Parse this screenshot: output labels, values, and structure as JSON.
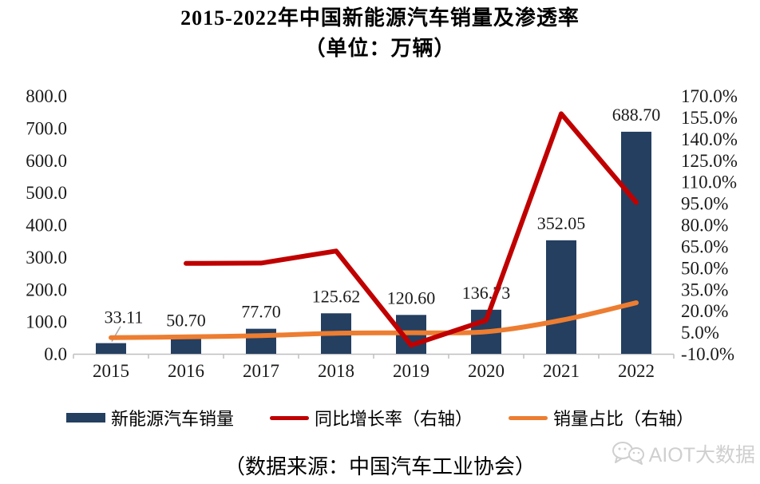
{
  "title": {
    "line1": "2015-2022年中国新能源汽车销量及渗透率",
    "line2": "（单位：万辆）"
  },
  "source": "（数据来源：中国汽车工业协会）",
  "watermark": {
    "icon": "wechat-chat-bubbles-icon",
    "text": "AIOT大数据"
  },
  "legend": [
    {
      "label": "新能源汽车销量",
      "type": "bar",
      "color": "#243F60"
    },
    {
      "label": "同比增长率（右轴）",
      "type": "line",
      "color": "#C00000"
    },
    {
      "label": "销量占比（右轴）",
      "type": "line",
      "color": "#ED7D31"
    }
  ],
  "chart_data": {
    "type": "bar+line",
    "categories": [
      "2015",
      "2016",
      "2017",
      "2018",
      "2019",
      "2020",
      "2021",
      "2022"
    ],
    "series": [
      {
        "name": "新能源汽车销量",
        "type": "bar",
        "axis": "left",
        "color": "#243F60",
        "values": [
          33.11,
          50.7,
          77.7,
          125.62,
          120.6,
          136.73,
          352.05,
          688.7
        ],
        "labels": [
          "33.11",
          "50.70",
          "77.70",
          "125.62",
          "120.60",
          "136.73",
          "352.05",
          "688.70"
        ]
      },
      {
        "name": "同比增长率（右轴）",
        "type": "line",
        "axis": "right",
        "color": "#C00000",
        "smooth": false,
        "values": [
          null,
          53.1,
          53.3,
          61.7,
          -4.0,
          13.4,
          157.5,
          95.6
        ]
      },
      {
        "name": "销量占比（右轴）",
        "type": "line",
        "axis": "right",
        "color": "#ED7D31",
        "smooth": true,
        "values": [
          1.3,
          1.8,
          2.7,
          4.4,
          4.7,
          5.4,
          13.4,
          25.6
        ]
      }
    ],
    "left_axis": {
      "min": 0,
      "max": 800,
      "step": 100,
      "tick_labels": [
        "0.0",
        "100.0",
        "200.0",
        "300.0",
        "400.0",
        "500.0",
        "600.0",
        "700.0",
        "800.0"
      ]
    },
    "right_axis": {
      "min": -10,
      "max": 170,
      "step": 15,
      "tick_labels": [
        "-10.0%",
        "5.0%",
        "20.0%",
        "35.0%",
        "50.0%",
        "65.0%",
        "80.0%",
        "95.0%",
        "110.0%",
        "125.0%",
        "140.0%",
        "155.0%",
        "170.0%"
      ]
    },
    "grid": false,
    "legend_position": "bottom",
    "axis_color": "#BFBFBF",
    "leader_line_color": "#A6A6A6"
  }
}
